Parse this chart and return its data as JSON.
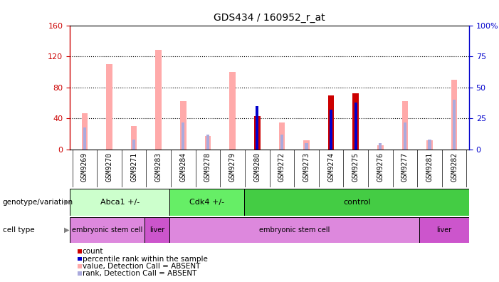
{
  "title": "GDS434 / 160952_r_at",
  "samples": [
    "GSM9269",
    "GSM9270",
    "GSM9271",
    "GSM9283",
    "GSM9284",
    "GSM9278",
    "GSM9279",
    "GSM9280",
    "GSM9272",
    "GSM9273",
    "GSM9274",
    "GSM9275",
    "GSM9276",
    "GSM9277",
    "GSM9281",
    "GSM9282"
  ],
  "count_values": [
    0,
    0,
    0,
    0,
    0,
    0,
    0,
    43,
    0,
    0,
    70,
    72,
    0,
    0,
    0,
    0
  ],
  "rank_values": [
    0,
    0,
    0,
    0,
    0,
    0,
    0,
    35,
    0,
    0,
    32,
    38,
    0,
    0,
    0,
    0
  ],
  "absent_value_vals": [
    47,
    110,
    30,
    128,
    62,
    17,
    100,
    17,
    35,
    12,
    35,
    35,
    5,
    62,
    12,
    90
  ],
  "absent_rank_vals": [
    18,
    0,
    8,
    0,
    22,
    12,
    0,
    18,
    12,
    5,
    0,
    0,
    5,
    22,
    8,
    40
  ],
  "ylim_left": [
    0,
    160
  ],
  "ylim_right": [
    0,
    100
  ],
  "left_ticks": [
    0,
    40,
    80,
    120,
    160
  ],
  "right_ticks": [
    0,
    25,
    50,
    75,
    100
  ],
  "left_tick_labels": [
    "0",
    "40",
    "80",
    "120",
    "160"
  ],
  "right_tick_labels": [
    "0",
    "25",
    "50",
    "75",
    "100%"
  ],
  "color_count": "#cc0000",
  "color_rank": "#0000cc",
  "color_absent_value": "#ffaaaa",
  "color_absent_rank": "#aaaadd",
  "bar_width": 0.25,
  "rank_bar_width": 0.12,
  "genotype_groups": [
    {
      "label": "Abca1 +/-",
      "start": 0,
      "end": 4,
      "color": "#ccffcc"
    },
    {
      "label": "Cdk4 +/-",
      "start": 4,
      "end": 7,
      "color": "#66ee66"
    },
    {
      "label": "control",
      "start": 7,
      "end": 16,
      "color": "#44cc44"
    }
  ],
  "celltype_groups": [
    {
      "label": "embryonic stem cell",
      "start": 0,
      "end": 3,
      "color": "#dd88dd"
    },
    {
      "label": "liver",
      "start": 3,
      "end": 4,
      "color": "#cc55cc"
    },
    {
      "label": "embryonic stem cell",
      "start": 4,
      "end": 14,
      "color": "#dd88dd"
    },
    {
      "label": "liver",
      "start": 14,
      "end": 16,
      "color": "#cc55cc"
    }
  ],
  "legend_items": [
    {
      "label": "count",
      "color": "#cc0000"
    },
    {
      "label": "percentile rank within the sample",
      "color": "#0000cc"
    },
    {
      "label": "value, Detection Call = ABSENT",
      "color": "#ffaaaa"
    },
    {
      "label": "rank, Detection Call = ABSENT",
      "color": "#aaaadd"
    }
  ],
  "left_axis_color": "#cc0000",
  "right_axis_color": "#0000cc",
  "background_color": "#ffffff",
  "plot_bg_color": "#ffffff",
  "xtick_bg_color": "#cccccc",
  "genotype_label": "genotype/variation",
  "celltype_label": "cell type"
}
